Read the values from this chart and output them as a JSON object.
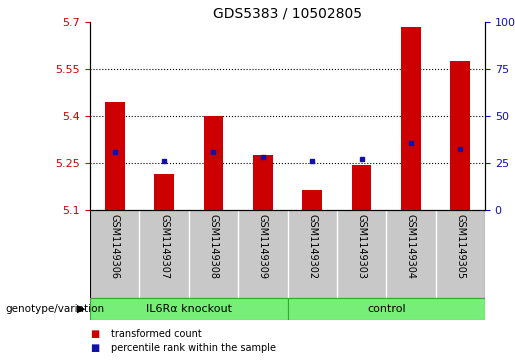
{
  "title": "GDS5383 / 10502805",
  "samples": [
    "GSM1149306",
    "GSM1149307",
    "GSM1149308",
    "GSM1149309",
    "GSM1149302",
    "GSM1149303",
    "GSM1149304",
    "GSM1149305"
  ],
  "red_values": [
    5.445,
    5.215,
    5.4,
    5.275,
    5.165,
    5.245,
    5.685,
    5.575
  ],
  "blue_values": [
    5.285,
    5.255,
    5.285,
    5.27,
    5.255,
    5.263,
    5.315,
    5.295
  ],
  "ylim_left": [
    5.1,
    5.7
  ],
  "yticks_left": [
    5.1,
    5.25,
    5.4,
    5.55,
    5.7
  ],
  "yticks_right": [
    0,
    25,
    50,
    75,
    100
  ],
  "grid_lines": [
    5.25,
    5.4,
    5.55
  ],
  "groups": [
    {
      "label": "IL6Rα knockout",
      "start": 0,
      "end": 3
    },
    {
      "label": "control",
      "start": 4,
      "end": 7
    }
  ],
  "genotype_label": "genotype/variation",
  "legend_items": [
    {
      "color": "#CC0000",
      "label": "transformed count"
    },
    {
      "color": "#1111AA",
      "label": "percentile rank within the sample"
    }
  ],
  "bar_width": 0.4,
  "red_color": "#CC0000",
  "blue_color": "#1111AA",
  "plot_bg_color": "#FFFFFF",
  "tick_area_color": "#C8C8C8",
  "group_color": "#77EE77",
  "group_border_color": "#33AA33"
}
